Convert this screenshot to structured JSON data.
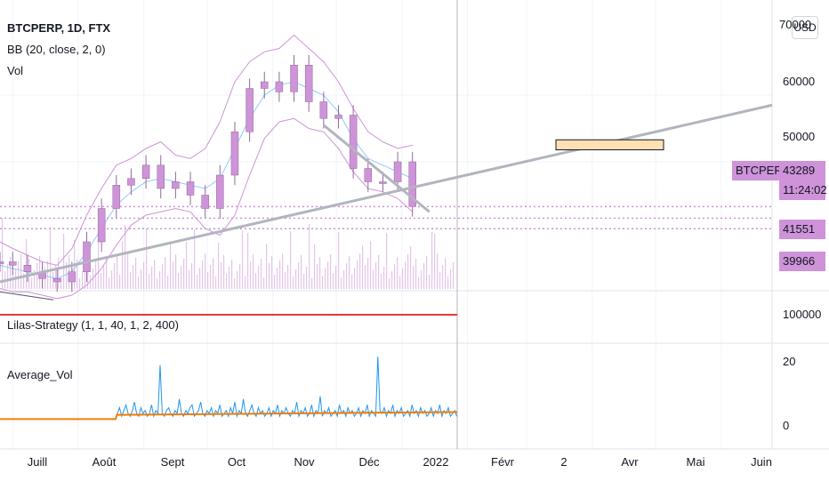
{
  "legend": {
    "symbol": "BTCPERP, 1D, FTX",
    "bb": "BB (20, close, 2, 0)",
    "vol": "Vol",
    "strategy": "Lilas-Strategy (1, 1, 40, 1, 2, 400)",
    "average_vol": "Average_Vol"
  },
  "currency_button": "USD",
  "price_axis": [
    "70000",
    "60000",
    "50000"
  ],
  "price_labels": {
    "symbol_tag": "BTCPERP",
    "last_price": "43289",
    "countdown": "11:24:02",
    "level1": "41551",
    "level2": "39966"
  },
  "strategy_axis": [
    "100000"
  ],
  "avgvol_axis": [
    "20",
    "0"
  ],
  "x_axis": [
    "Juill",
    "Août",
    "Sept",
    "Oct",
    "Nov",
    "Déc",
    "2022",
    "Févr",
    "2",
    "Avr",
    "Mai",
    "Juin"
  ],
  "colors": {
    "candle": "#ce93d8",
    "bb_outer": "#ce93d8",
    "bb_basis": "#90caf9",
    "trendline": "#b2b5be",
    "strategy_line": "#e53935",
    "avg_vol_line": "#2196f3",
    "avg_vol_ma": "#f57c00",
    "rect_fill": "#ffe0b2"
  },
  "chart_data": [
    {
      "type": "candlestick",
      "title": "BTCPERP, 1D, FTX",
      "x": [
        "2021-06-25",
        "2021-07-01",
        "2021-07-08",
        "2021-07-15",
        "2021-07-22",
        "2021-07-29",
        "2021-08-05",
        "2021-08-12",
        "2021-08-19",
        "2021-08-26",
        "2021-09-02",
        "2021-09-09",
        "2021-09-16",
        "2021-09-23",
        "2021-09-30",
        "2021-10-07",
        "2021-10-14",
        "2021-10-21",
        "2021-10-28",
        "2021-11-04",
        "2021-11-11",
        "2021-11-18",
        "2021-11-25",
        "2021-12-02",
        "2021-12-09",
        "2021-12-16",
        "2021-12-23",
        "2021-12-30",
        "2022-01-06"
      ],
      "close": [
        35000,
        34500,
        33500,
        32500,
        32000,
        33500,
        38000,
        43000,
        46500,
        47500,
        49500,
        46000,
        47000,
        45000,
        43000,
        48000,
        54500,
        61000,
        62000,
        60500,
        64500,
        59000,
        56500,
        57000,
        49000,
        47000,
        47000,
        50000,
        43289
      ],
      "ylim": [
        30000,
        70000
      ],
      "bollinger": {
        "upper": [
          38000,
          37000,
          36000,
          35000,
          34500,
          37000,
          42000,
          46000,
          49500,
          50500,
          52000,
          53000,
          51000,
          50500,
          52000,
          56000,
          62000,
          65000,
          66500,
          67000,
          69000,
          67000,
          65000,
          62000,
          58000,
          54500,
          53000,
          52000,
          52500
        ],
        "basis": [
          34500,
          34000,
          33500,
          33000,
          32500,
          33500,
          36500,
          40000,
          43500,
          45500,
          47000,
          47500,
          47000,
          46500,
          46000,
          47500,
          52000,
          56500,
          60000,
          61500,
          62000,
          61000,
          60000,
          57500,
          53500,
          50500,
          49500,
          48500,
          47500
        ],
        "lower": [
          31000,
          30500,
          30500,
          30000,
          29500,
          30000,
          31500,
          34000,
          37500,
          40500,
          42000,
          42500,
          43000,
          42500,
          40000,
          39000,
          42000,
          48000,
          53500,
          56000,
          56500,
          55000,
          54500,
          52000,
          48500,
          46000,
          45500,
          44500,
          42500
        ]
      },
      "horizontal_levels": [
        43289,
        41551,
        39966
      ],
      "trendline": {
        "from": [
          "2021-06-25",
          32000
        ],
        "to": [
          "2022-06-25",
          58500
        ]
      }
    },
    {
      "type": "line",
      "title": "Lilas-Strategy (1, 1, 40, 1, 2, 400)",
      "series": [
        {
          "values": [
            100000
          ]
        }
      ]
    },
    {
      "type": "line",
      "title": "Average_Vol",
      "ylim": [
        0,
        25
      ],
      "series": [
        {
          "values": [
            3,
            3,
            3,
            3,
            3,
            3,
            3,
            3,
            3,
            3,
            3,
            3,
            3,
            3,
            3,
            3,
            3,
            3,
            3,
            3,
            3,
            3,
            3,
            3,
            3,
            3,
            3,
            3,
            3,
            3,
            3,
            3,
            3,
            3,
            3,
            3,
            3,
            3,
            3,
            3,
            3,
            3,
            3,
            3,
            3,
            3,
            3,
            3,
            3,
            3,
            3,
            3,
            3,
            3,
            3,
            3,
            3,
            3,
            3,
            3,
            3,
            3,
            3,
            3,
            3,
            3,
            3,
            3,
            3,
            3,
            3,
            3,
            3,
            3,
            3,
            3,
            3,
            3,
            3,
            3,
            3,
            3,
            3,
            3,
            3,
            3,
            3,
            3,
            3,
            3,
            3,
            3,
            3,
            3,
            3,
            3,
            3,
            3,
            3,
            3,
            3,
            3,
            3,
            3,
            3,
            3,
            3,
            3,
            3,
            3,
            3,
            3,
            3,
            3,
            3,
            3,
            3,
            3,
            3,
            3,
            3,
            3,
            3,
            3,
            3,
            3,
            3,
            3,
            3,
            3,
            3,
            3,
            3,
            3,
            3,
            3,
            3,
            3,
            3,
            3,
            3,
            3,
            3,
            3,
            3,
            3,
            3,
            3,
            3,
            3,
            3,
            3,
            3,
            3,
            3,
            3,
            3,
            3,
            3,
            3,
            3,
            3,
            3,
            3,
            3,
            3,
            3,
            3,
            3,
            3,
            3,
            3,
            3,
            3,
            3,
            3,
            3,
            3,
            3,
            3,
            3,
            3,
            3,
            3,
            3,
            3,
            3,
            3,
            3,
            3,
            3,
            3,
            3,
            3,
            3,
            3,
            3,
            3,
            3,
            3
          ]
        },
        {
          "values": [
            5,
            7,
            4,
            6,
            8,
            5,
            4,
            6,
            9,
            5,
            4,
            7,
            5,
            6,
            4,
            5,
            8,
            4,
            6,
            5,
            22,
            5,
            4,
            6,
            7,
            5,
            4,
            6,
            5,
            10,
            5,
            4,
            6,
            5,
            7,
            8,
            4,
            5,
            6,
            9,
            5,
            4,
            6,
            5,
            7,
            4,
            6,
            5,
            8,
            4,
            5,
            6,
            4,
            7,
            5,
            9,
            4,
            6,
            5,
            10,
            5,
            4,
            6,
            8,
            5,
            4,
            7,
            5,
            6,
            4,
            5,
            7,
            4,
            6,
            5,
            8,
            4,
            6,
            5,
            7,
            5,
            4,
            6,
            5,
            9,
            4,
            6,
            5,
            7,
            4,
            5,
            8,
            4,
            6,
            5,
            11,
            4,
            6,
            5,
            7,
            4,
            5,
            6,
            4,
            8,
            5,
            6,
            4,
            7,
            5,
            6,
            4,
            5,
            7,
            4,
            6,
            5,
            8,
            4,
            6,
            5,
            4,
            25,
            6,
            5,
            7,
            4,
            6,
            5,
            8,
            4,
            6,
            5,
            7,
            4,
            5,
            6,
            4,
            8,
            5,
            6,
            4,
            7,
            5,
            6,
            4,
            5,
            7,
            4,
            6,
            5,
            8,
            4,
            6,
            5,
            7,
            4,
            5,
            6,
            4
          ]
        },
        {
          "values": [
            5,
            5,
            5,
            5,
            5,
            5,
            5,
            5,
            5,
            5,
            5,
            5,
            5,
            5,
            5,
            5,
            5,
            5,
            5,
            5,
            5,
            5,
            5,
            5,
            5,
            5,
            5,
            5,
            5,
            5,
            5,
            5,
            5,
            5,
            5,
            5,
            5,
            5,
            5,
            5,
            5,
            5,
            5,
            5,
            5,
            5,
            5,
            5,
            5,
            5,
            5,
            5,
            5,
            5,
            5,
            5,
            5,
            5,
            5,
            5,
            5,
            5,
            5,
            5,
            5,
            5,
            5,
            5,
            5,
            5,
            5,
            5,
            5,
            5,
            5,
            5,
            5,
            5,
            5,
            5,
            5,
            5,
            5,
            5,
            5,
            5,
            5,
            5,
            5,
            5,
            5,
            5,
            5,
            5,
            5,
            5,
            5,
            5,
            5,
            5,
            5,
            5,
            5,
            5,
            5,
            5,
            5,
            5,
            5,
            5,
            5,
            5,
            5,
            5,
            5,
            5,
            5,
            5,
            5,
            5,
            5,
            5,
            5,
            5,
            5,
            5,
            5,
            5,
            5,
            5,
            5,
            5,
            5,
            5,
            5,
            5,
            5,
            5,
            5,
            5,
            5,
            5,
            5,
            5,
            5,
            5,
            5,
            5,
            5,
            5,
            5,
            5,
            5,
            5,
            5,
            5,
            5,
            5,
            5,
            5
          ]
        }
      ]
    }
  ]
}
